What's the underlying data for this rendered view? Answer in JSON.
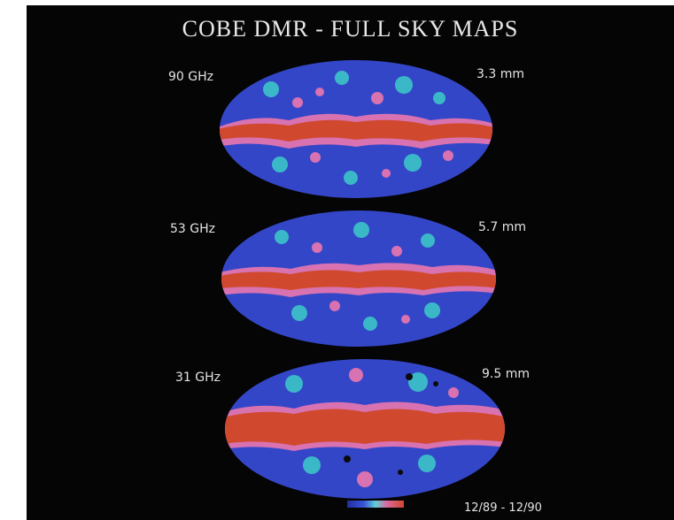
{
  "title": "COBE DMR - FULL SKY MAPS",
  "maps": [
    {
      "frequency": "90 GHz",
      "wavelength": "3.3 mm"
    },
    {
      "frequency": "53 GHz",
      "wavelength": "5.7 mm"
    },
    {
      "frequency": "31 GHz",
      "wavelength": "9.5 mm"
    }
  ],
  "date_range": "12/89 - 12/90",
  "colors": {
    "background": "#050505",
    "sky_blue": "#3446c8",
    "galactic_plane": "#d0492e",
    "cyan_noise": "#3bb8c8",
    "pink_noise": "#d872b0"
  }
}
